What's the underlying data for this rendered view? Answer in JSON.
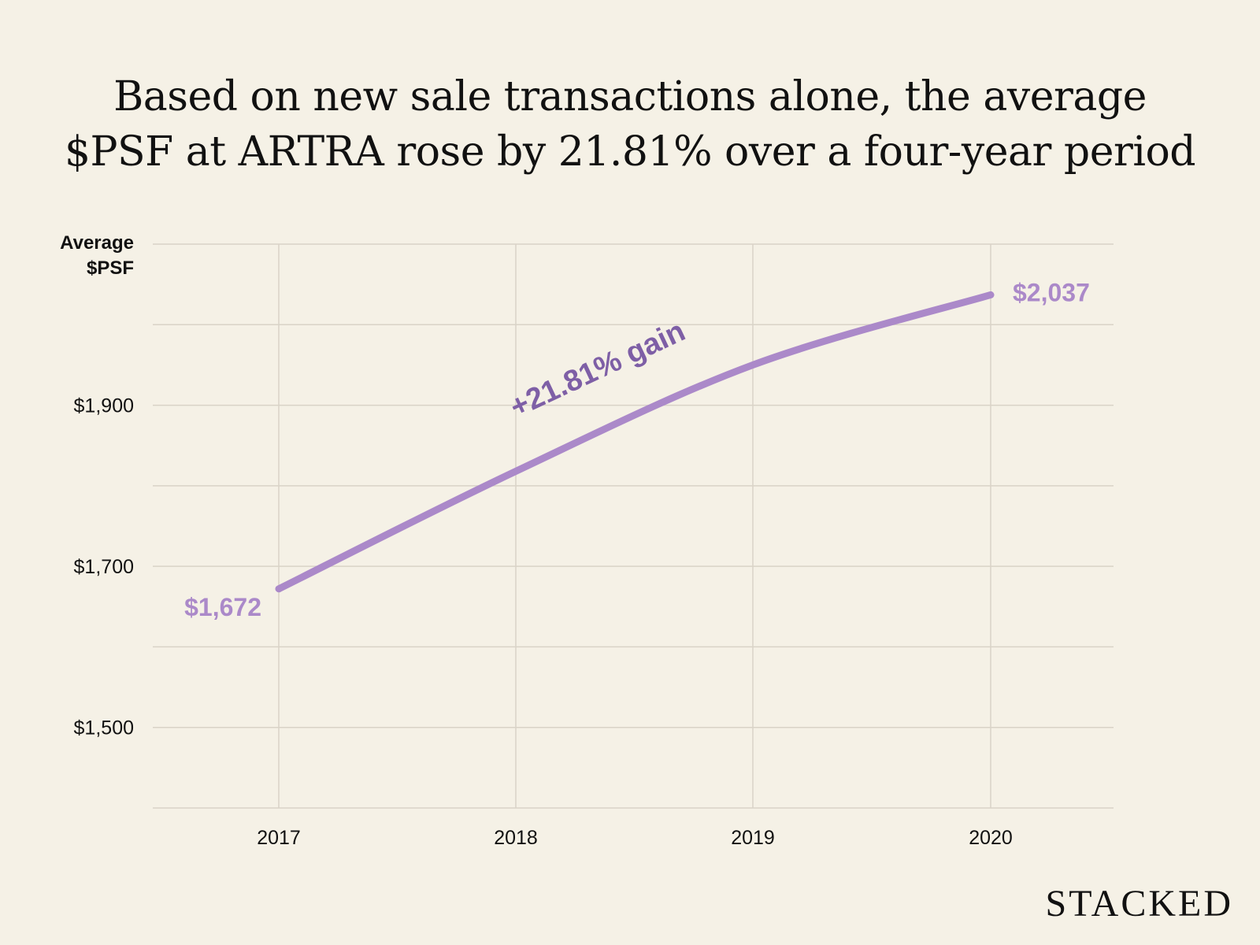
{
  "title_lines": [
    "Based on new sale transactions alone, the average",
    "$PSF at ARTRA rose by 21.81% over a four-year period"
  ],
  "brand": "STACKED",
  "colors": {
    "background": "#f5f1e6",
    "line": "#ab89c9",
    "label": "#ab89c9",
    "annotation": "#7e5fa6",
    "grid": "#d9d3c7",
    "text": "#111111"
  },
  "chart_data": {
    "type": "line",
    "x": [
      "2017",
      "2018",
      "2019",
      "2020"
    ],
    "series": [
      {
        "values": [
          1672,
          1818,
          1950,
          2037
        ]
      }
    ],
    "ylabel_lines": [
      "Average",
      "$PSF"
    ],
    "ylim": [
      1400,
      2100
    ],
    "yticks": [
      1500,
      1700,
      1900
    ],
    "ytick_labels": [
      "$1,500",
      "$1,700",
      "$1,900"
    ],
    "gridline_step": 100,
    "grid": true,
    "data_labels": [
      {
        "x": "2017",
        "value": 1672,
        "text": "$1,672"
      },
      {
        "x": "2020",
        "value": 2037,
        "text": "$2,037"
      }
    ],
    "annotation": "+21.81% gain"
  }
}
